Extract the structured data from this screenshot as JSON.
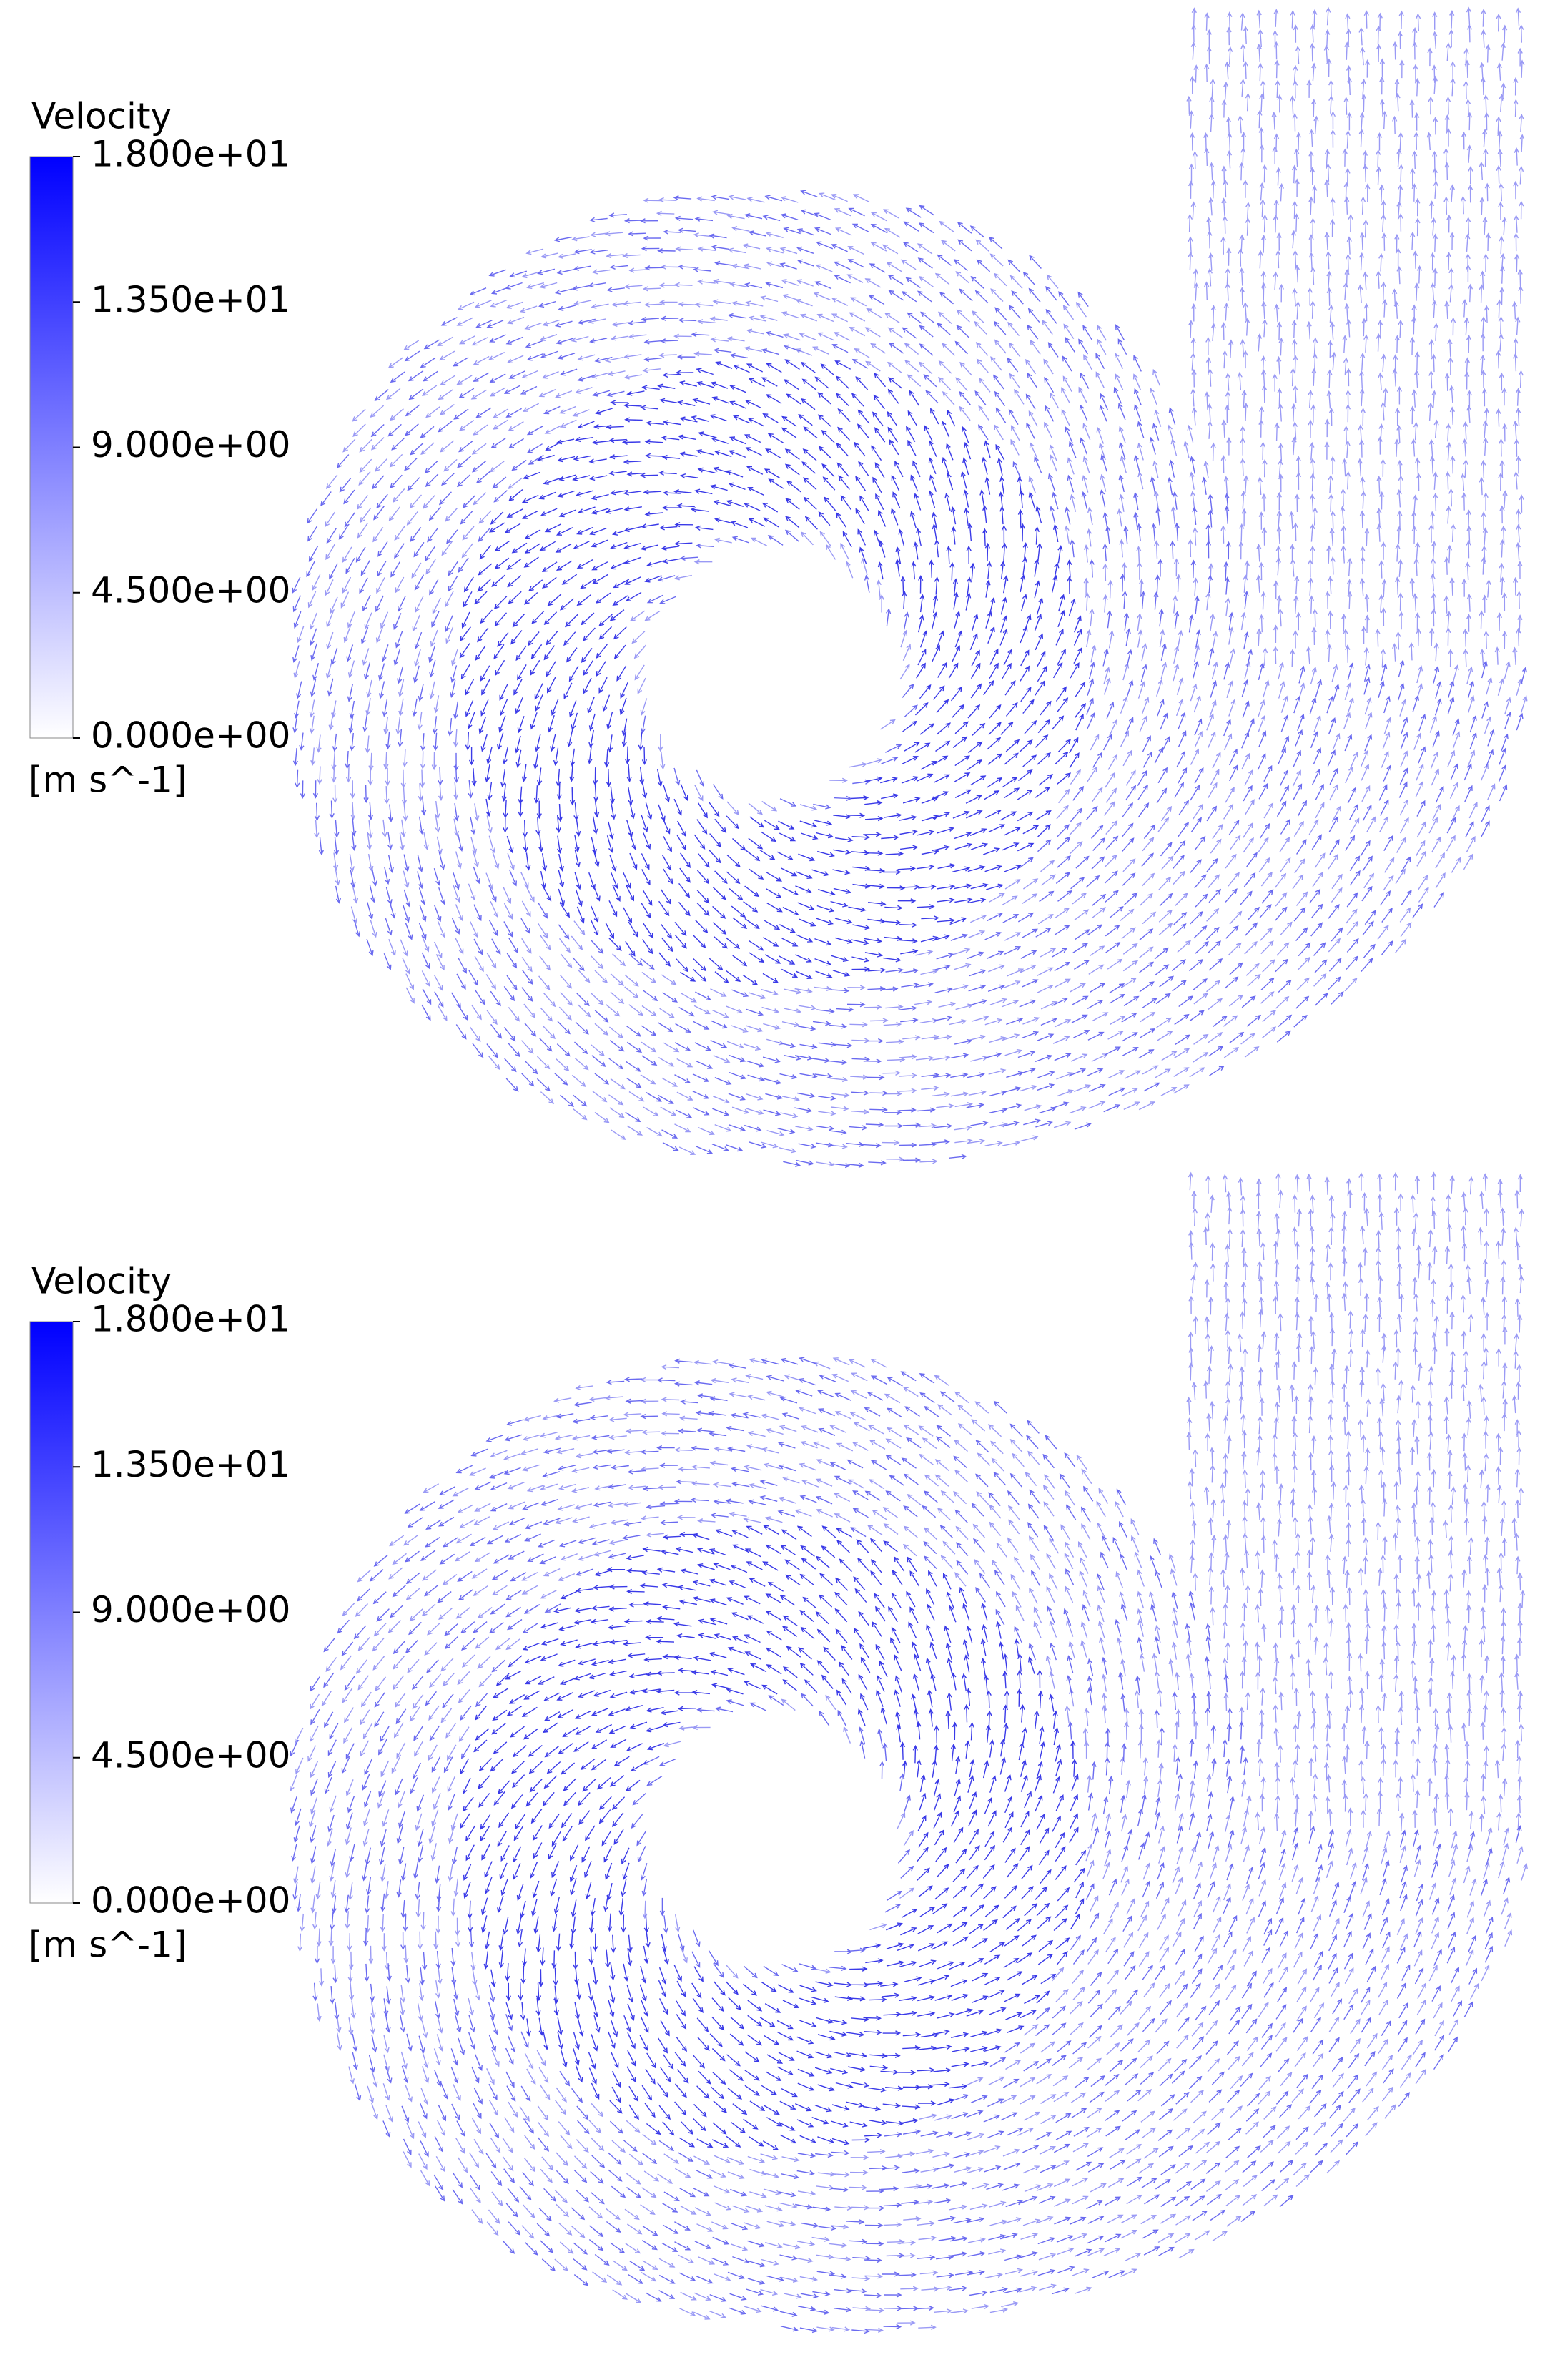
{
  "panels": [
    {
      "legend": {
        "title": "Velocity",
        "unit": "[m s^-1]",
        "range": [
          0,
          18
        ],
        "color_min": "#ffffff",
        "color_max": "#0000ff",
        "ticks": [
          {
            "value": 18,
            "label": "1.800e+01"
          },
          {
            "value": 13.5,
            "label": "1.350e+01"
          },
          {
            "value": 9,
            "label": "9.000e+00"
          },
          {
            "value": 4.5,
            "label": "4.500e+00"
          },
          {
            "value": 0,
            "label": "0.000e+00"
          }
        ]
      }
    },
    {
      "legend": {
        "title": "Velocity",
        "unit": "[m s^-1]",
        "range": [
          0,
          18
        ],
        "color_min": "#ffffff",
        "color_max": "#0000ff",
        "ticks": [
          {
            "value": 18,
            "label": "1.800e+01"
          },
          {
            "value": 13.5,
            "label": "1.350e+01"
          },
          {
            "value": 9,
            "label": "9.000e+00"
          },
          {
            "value": 4.5,
            "label": "4.500e+00"
          },
          {
            "value": 0,
            "label": "0.000e+00"
          }
        ]
      }
    }
  ]
}
